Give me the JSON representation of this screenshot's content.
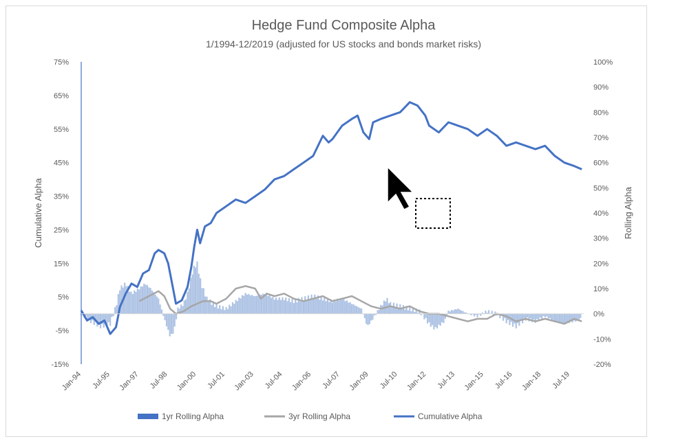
{
  "chart_data": {
    "type": "line",
    "title": "Hedge Fund Composite Alpha",
    "subtitle": "1/1994-12/2019  (adjusted for US stocks and bonds market risks)",
    "y_left_label": "Cumulative Alpha",
    "y_right_label": "Rolling Alpha",
    "y_left_range": [
      -15,
      75
    ],
    "y_right_range": [
      -20,
      100
    ],
    "y_left_ticks": [
      "75%",
      "65%",
      "55%",
      "45%",
      "35%",
      "25%",
      "15%",
      "5%",
      "-5%",
      "-15%"
    ],
    "y_right_ticks": [
      "100%",
      "90%",
      "80%",
      "70%",
      "60%",
      "50%",
      "40%",
      "30%",
      "20%",
      "10%",
      "0%",
      "-10%",
      "-20%"
    ],
    "x_ticks": [
      "Jan-94",
      "Jul-95",
      "Jan-97",
      "Jul-98",
      "Jan-00",
      "Jul-01",
      "Jan-03",
      "Jul-04",
      "Jan-06",
      "Jul-07",
      "Jan-09",
      "Jul-10",
      "Jan-12",
      "Jul-13",
      "Jan-15",
      "Jul-16",
      "Jan-18",
      "Jul-19"
    ],
    "legend_position": "bottom",
    "series": [
      {
        "name": "1yr Rolling Alpha",
        "kind": "bar",
        "axis": "right",
        "color": "#aec3e4",
        "points": [
          [
            1994.0,
            0
          ],
          [
            1994.5,
            -3
          ],
          [
            1995.0,
            -5
          ],
          [
            1995.5,
            -4
          ],
          [
            1995.8,
            3
          ],
          [
            1996.0,
            10
          ],
          [
            1996.3,
            12
          ],
          [
            1996.6,
            8
          ],
          [
            1997.0,
            10
          ],
          [
            1997.3,
            12
          ],
          [
            1997.6,
            10
          ],
          [
            1998.0,
            6
          ],
          [
            1998.3,
            -2
          ],
          [
            1998.6,
            -9
          ],
          [
            1998.8,
            -7
          ],
          [
            1999.0,
            2
          ],
          [
            1999.3,
            4
          ],
          [
            1999.5,
            8
          ],
          [
            1999.8,
            18
          ],
          [
            2000.0,
            20
          ],
          [
            2000.2,
            12
          ],
          [
            2000.5,
            6
          ],
          [
            2000.8,
            4
          ],
          [
            2001.0,
            3
          ],
          [
            2001.5,
            2
          ],
          [
            2002.0,
            5
          ],
          [
            2002.5,
            8
          ],
          [
            2003.0,
            7
          ],
          [
            2003.5,
            8
          ],
          [
            2004.0,
            6
          ],
          [
            2004.5,
            6
          ],
          [
            2005.0,
            5
          ],
          [
            2005.5,
            6
          ],
          [
            2006.0,
            7
          ],
          [
            2006.5,
            6
          ],
          [
            2007.0,
            5
          ],
          [
            2007.5,
            6
          ],
          [
            2008.0,
            4
          ],
          [
            2008.5,
            2
          ],
          [
            2008.8,
            -5
          ],
          [
            2009.0,
            -3
          ],
          [
            2009.5,
            3
          ],
          [
            2009.8,
            6
          ],
          [
            2010.0,
            4
          ],
          [
            2010.5,
            3
          ],
          [
            2011.0,
            2
          ],
          [
            2011.5,
            1
          ],
          [
            2012.0,
            -4
          ],
          [
            2012.3,
            -6
          ],
          [
            2012.8,
            -3
          ],
          [
            2013.0,
            1
          ],
          [
            2013.5,
            2
          ],
          [
            2014.0,
            0
          ],
          [
            2014.5,
            -1
          ],
          [
            2015.0,
            1
          ],
          [
            2015.5,
            0
          ],
          [
            2016.0,
            -3
          ],
          [
            2016.5,
            -5
          ],
          [
            2017.0,
            -2
          ],
          [
            2017.5,
            -3
          ],
          [
            2018.0,
            -1
          ],
          [
            2018.5,
            -3
          ],
          [
            2019.0,
            -4
          ],
          [
            2019.5,
            -3
          ],
          [
            2019.9,
            -2
          ]
        ]
      },
      {
        "name": "3yr Rolling Alpha",
        "kind": "line",
        "axis": "right",
        "color": "#a6a6a6",
        "points": [
          [
            1997.0,
            5
          ],
          [
            1997.5,
            7
          ],
          [
            1998.0,
            9
          ],
          [
            1998.3,
            7
          ],
          [
            1998.6,
            2
          ],
          [
            1998.9,
            0
          ],
          [
            1999.3,
            1
          ],
          [
            1999.7,
            3
          ],
          [
            2000.0,
            4
          ],
          [
            2000.3,
            5
          ],
          [
            2000.7,
            5
          ],
          [
            2001.0,
            4
          ],
          [
            2001.5,
            6
          ],
          [
            2002.0,
            10
          ],
          [
            2002.5,
            11
          ],
          [
            2003.0,
            10
          ],
          [
            2003.3,
            6
          ],
          [
            2003.6,
            8
          ],
          [
            2004.0,
            7
          ],
          [
            2004.5,
            8
          ],
          [
            2005.0,
            6
          ],
          [
            2005.5,
            5
          ],
          [
            2006.0,
            6
          ],
          [
            2006.5,
            7
          ],
          [
            2007.0,
            5
          ],
          [
            2007.5,
            6
          ],
          [
            2008.0,
            7
          ],
          [
            2008.5,
            5
          ],
          [
            2009.0,
            3
          ],
          [
            2009.5,
            2
          ],
          [
            2010.0,
            3
          ],
          [
            2010.5,
            2
          ],
          [
            2011.0,
            3
          ],
          [
            2011.5,
            1
          ],
          [
            2012.0,
            0
          ],
          [
            2012.5,
            0
          ],
          [
            2013.0,
            -1
          ],
          [
            2013.5,
            -2
          ],
          [
            2014.0,
            -3
          ],
          [
            2014.5,
            -2
          ],
          [
            2015.0,
            -2
          ],
          [
            2015.5,
            0
          ],
          [
            2016.0,
            -1
          ],
          [
            2016.5,
            -3
          ],
          [
            2017.0,
            -2
          ],
          [
            2017.5,
            -3
          ],
          [
            2018.0,
            -2
          ],
          [
            2018.5,
            -3
          ],
          [
            2019.0,
            -4
          ],
          [
            2019.5,
            -2
          ],
          [
            2019.9,
            -3
          ]
        ]
      },
      {
        "name": "Cumulative Alpha",
        "kind": "line",
        "axis": "left",
        "color": "#4472c4",
        "points": [
          [
            1994.0,
            1
          ],
          [
            1994.3,
            -2
          ],
          [
            1994.6,
            -1
          ],
          [
            1994.9,
            -3
          ],
          [
            1995.2,
            -2
          ],
          [
            1995.5,
            -6
          ],
          [
            1995.8,
            -4
          ],
          [
            1996.0,
            2
          ],
          [
            1996.3,
            6
          ],
          [
            1996.6,
            9
          ],
          [
            1996.9,
            8
          ],
          [
            1997.2,
            12
          ],
          [
            1997.5,
            13
          ],
          [
            1997.8,
            18
          ],
          [
            1998.0,
            19
          ],
          [
            1998.3,
            18
          ],
          [
            1998.5,
            15
          ],
          [
            1998.7,
            9
          ],
          [
            1998.9,
            3
          ],
          [
            1999.2,
            4
          ],
          [
            1999.5,
            8
          ],
          [
            1999.7,
            14
          ],
          [
            1999.85,
            20
          ],
          [
            2000.0,
            25
          ],
          [
            2000.15,
            21
          ],
          [
            2000.4,
            26
          ],
          [
            2000.7,
            27
          ],
          [
            2001.0,
            30
          ],
          [
            2001.5,
            32
          ],
          [
            2002.0,
            34
          ],
          [
            2002.5,
            33
          ],
          [
            2003.0,
            35
          ],
          [
            2003.5,
            37
          ],
          [
            2004.0,
            40
          ],
          [
            2004.5,
            41
          ],
          [
            2005.0,
            43
          ],
          [
            2005.5,
            45
          ],
          [
            2006.0,
            47
          ],
          [
            2006.5,
            53
          ],
          [
            2006.8,
            51
          ],
          [
            2007.0,
            52
          ],
          [
            2007.5,
            56
          ],
          [
            2008.0,
            58
          ],
          [
            2008.3,
            59
          ],
          [
            2008.6,
            54
          ],
          [
            2008.9,
            52
          ],
          [
            2009.1,
            57
          ],
          [
            2009.5,
            58
          ],
          [
            2010.0,
            59
          ],
          [
            2010.5,
            60
          ],
          [
            2011.0,
            63
          ],
          [
            2011.4,
            62
          ],
          [
            2011.8,
            59
          ],
          [
            2012.0,
            56
          ],
          [
            2012.5,
            54
          ],
          [
            2013.0,
            57
          ],
          [
            2013.5,
            56
          ],
          [
            2014.0,
            55
          ],
          [
            2014.5,
            53
          ],
          [
            2015.0,
            55
          ],
          [
            2015.5,
            53
          ],
          [
            2016.0,
            50
          ],
          [
            2016.5,
            51
          ],
          [
            2017.0,
            50
          ],
          [
            2017.5,
            49
          ],
          [
            2018.0,
            50
          ],
          [
            2018.5,
            47
          ],
          [
            2019.0,
            45
          ],
          [
            2019.5,
            44
          ],
          [
            2019.9,
            43
          ]
        ]
      }
    ]
  }
}
